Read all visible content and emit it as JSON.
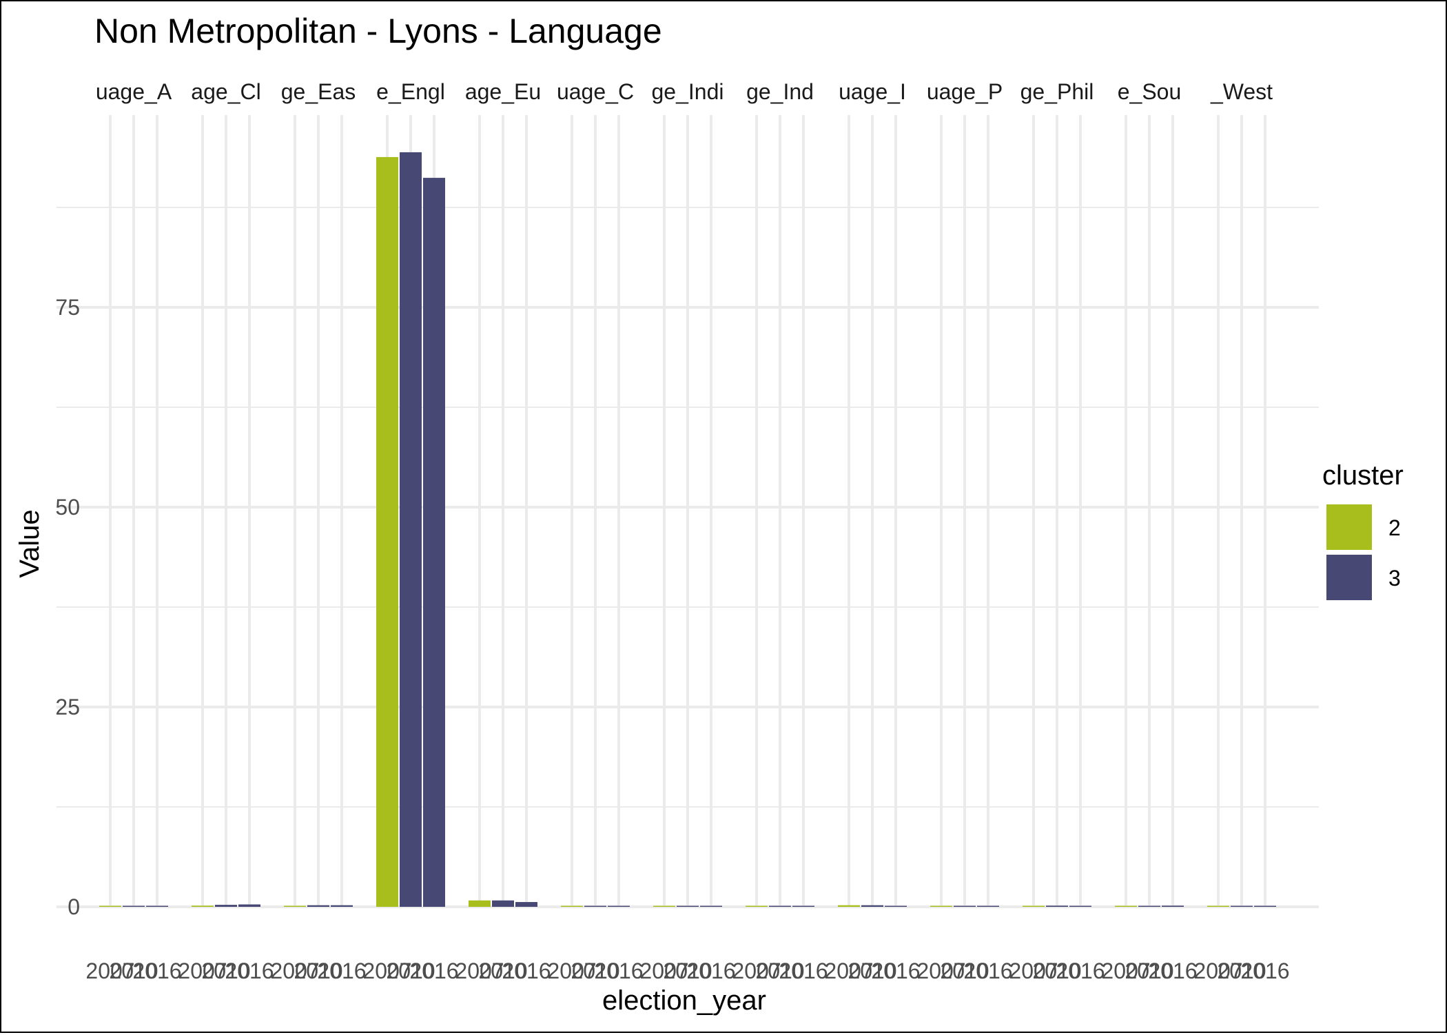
{
  "chart_data": {
    "type": "bar",
    "title": "Non Metropolitan - Lyons - Language",
    "xlabel": "election_year",
    "ylabel": "Value",
    "ylim": [
      0,
      95
    ],
    "y_ticks": [
      0,
      25,
      50,
      75
    ],
    "grid": true,
    "legend": {
      "title": "cluster",
      "position": "right",
      "entries": [
        {
          "label": "2",
          "color": "#A8BE1C"
        },
        {
          "label": "3",
          "color": "#474874"
        }
      ]
    },
    "facet_strip_labels": [
      "uage_A",
      "age_Cl",
      "ge_Eas",
      "e_Engl",
      "age_Eu",
      "uage_C",
      "ge_Indi",
      "ge_Ind",
      "uage_I",
      "uage_P",
      "ge_Phil",
      "e_Sou",
      "_West"
    ],
    "x_tick_labels": [
      "2007",
      "2010",
      "2016"
    ],
    "facets": [
      {
        "strip": "uage_A",
        "bars": [
          {
            "x": "2007",
            "cluster": "2",
            "value": 0.0
          },
          {
            "x": "2010",
            "cluster": "3",
            "value": 0.0
          },
          {
            "x": "2016",
            "cluster": "3",
            "value": 0.05
          }
        ]
      },
      {
        "strip": "age_Cl",
        "bars": [
          {
            "x": "2007",
            "cluster": "2",
            "value": 0.15
          },
          {
            "x": "2010",
            "cluster": "3",
            "value": 0.25
          },
          {
            "x": "2016",
            "cluster": "3",
            "value": 0.3
          }
        ]
      },
      {
        "strip": "ge_Eas",
        "bars": [
          {
            "x": "2007",
            "cluster": "2",
            "value": 0.1
          },
          {
            "x": "2010",
            "cluster": "3",
            "value": 0.2
          },
          {
            "x": "2016",
            "cluster": "3",
            "value": 0.2
          }
        ]
      },
      {
        "strip": "e_Engl",
        "bars": [
          {
            "x": "2007",
            "cluster": "2",
            "value": 93.8
          },
          {
            "x": "2010",
            "cluster": "3",
            "value": 94.4
          },
          {
            "x": "2016",
            "cluster": "3",
            "value": 91.2
          }
        ]
      },
      {
        "strip": "age_Eu",
        "bars": [
          {
            "x": "2007",
            "cluster": "2",
            "value": 0.8
          },
          {
            "x": "2010",
            "cluster": "3",
            "value": 0.8
          },
          {
            "x": "2016",
            "cluster": "3",
            "value": 0.6
          }
        ]
      },
      {
        "strip": "uage_C",
        "bars": [
          {
            "x": "2007",
            "cluster": "2",
            "value": 0.1
          },
          {
            "x": "2010",
            "cluster": "3",
            "value": 0.1
          },
          {
            "x": "2016",
            "cluster": "3",
            "value": 0.05
          }
        ]
      },
      {
        "strip": "ge_Indi",
        "bars": [
          {
            "x": "2007",
            "cluster": "2",
            "value": 0.0
          },
          {
            "x": "2010",
            "cluster": "3",
            "value": 0.0
          },
          {
            "x": "2016",
            "cluster": "3",
            "value": 0.0
          }
        ]
      },
      {
        "strip": "ge_Ind",
        "bars": [
          {
            "x": "2007",
            "cluster": "2",
            "value": 0.05
          },
          {
            "x": "2010",
            "cluster": "3",
            "value": 0.05
          },
          {
            "x": "2016",
            "cluster": "3",
            "value": 0.05
          }
        ]
      },
      {
        "strip": "uage_I",
        "bars": [
          {
            "x": "2007",
            "cluster": "2",
            "value": 0.2
          },
          {
            "x": "2010",
            "cluster": "3",
            "value": 0.2
          },
          {
            "x": "2016",
            "cluster": "3",
            "value": 0.1
          }
        ]
      },
      {
        "strip": "uage_P",
        "bars": [
          {
            "x": "2007",
            "cluster": "2",
            "value": 0.0
          },
          {
            "x": "2010",
            "cluster": "3",
            "value": 0.0
          },
          {
            "x": "2016",
            "cluster": "3",
            "value": 0.0
          }
        ]
      },
      {
        "strip": "ge_Phil",
        "bars": [
          {
            "x": "2007",
            "cluster": "2",
            "value": 0.1
          },
          {
            "x": "2010",
            "cluster": "3",
            "value": 0.15
          },
          {
            "x": "2016",
            "cluster": "3",
            "value": 0.1
          }
        ]
      },
      {
        "strip": "e_Sou",
        "bars": [
          {
            "x": "2007",
            "cluster": "2",
            "value": 0.05
          },
          {
            "x": "2010",
            "cluster": "3",
            "value": 0.1
          },
          {
            "x": "2016",
            "cluster": "3",
            "value": 0.15
          }
        ]
      },
      {
        "strip": "_West",
        "bars": [
          {
            "x": "2007",
            "cluster": "2",
            "value": 0.0
          },
          {
            "x": "2010",
            "cluster": "3",
            "value": 0.05
          },
          {
            "x": "2016",
            "cluster": "3",
            "value": 0.05
          }
        ]
      }
    ]
  }
}
